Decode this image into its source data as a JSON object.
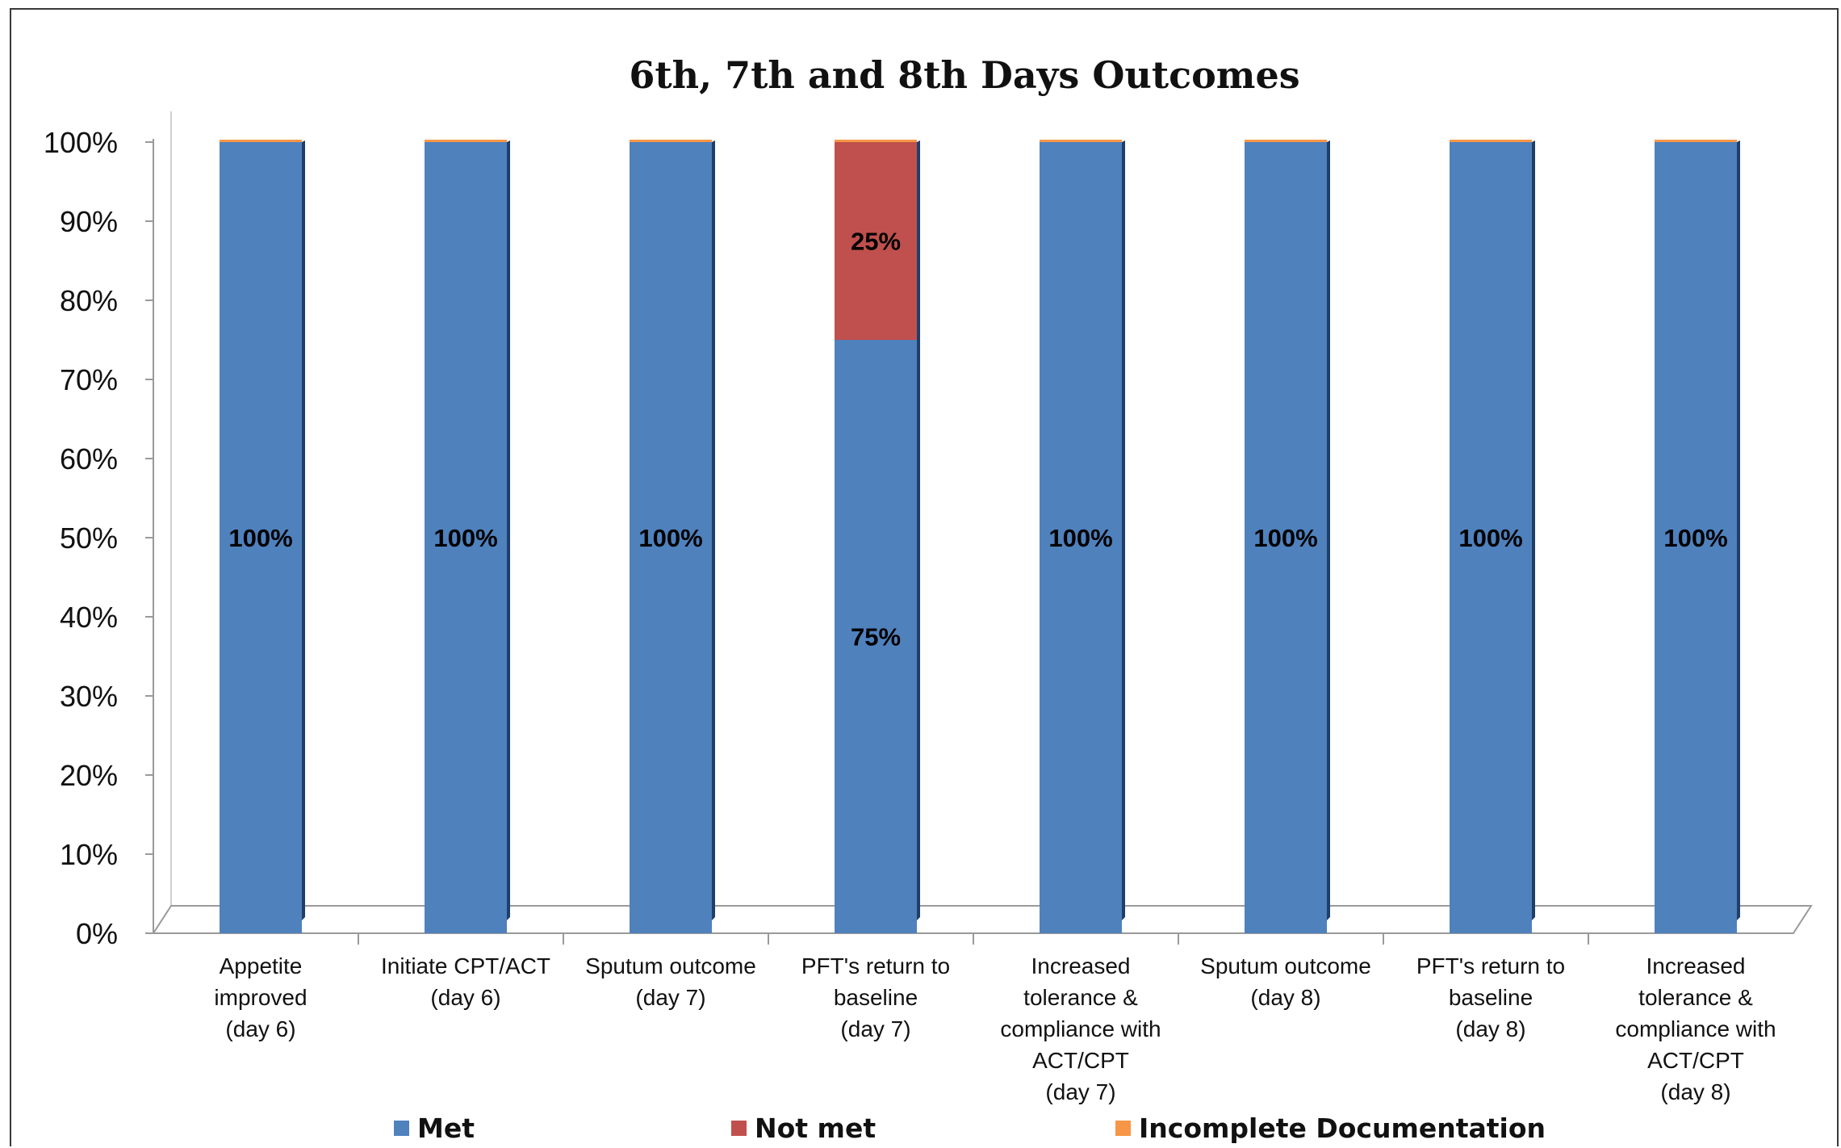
{
  "chart_data": {
    "type": "bar",
    "stacked": true,
    "percent": true,
    "title": "6th, 7th and 8th Days Outcomes",
    "categories": [
      [
        "Appetite",
        "improved",
        "(day 6)"
      ],
      [
        "Initiate CPT/ACT",
        "(day 6)"
      ],
      [
        "Sputum outcome",
        "(day 7)"
      ],
      [
        "PFT's return to",
        "baseline",
        "(day 7)"
      ],
      [
        "Increased",
        "tolerance &",
        "compliance with",
        "ACT/CPT",
        "(day 7)"
      ],
      [
        "Sputum outcome",
        "(day 8)"
      ],
      [
        "PFT's return to",
        "baseline",
        "(day 8)"
      ],
      [
        "Increased",
        "tolerance &",
        "compliance with",
        "ACT/CPT",
        "(day 8)"
      ]
    ],
    "series": [
      {
        "name": "Met",
        "color": "#4f81bd",
        "values": [
          100,
          100,
          100,
          75,
          100,
          100,
          100,
          100
        ],
        "labels": [
          "100%",
          "100%",
          "100%",
          "75%",
          "100%",
          "100%",
          "100%",
          "100%"
        ]
      },
      {
        "name": "Not met",
        "color": "#c0504d",
        "values": [
          0,
          0,
          0,
          25,
          0,
          0,
          0,
          0
        ],
        "labels": [
          "",
          "",
          "",
          "25%",
          "",
          "",
          "",
          ""
        ]
      },
      {
        "name": "Incomplete Documentation",
        "color": "#f79646",
        "values": [
          0,
          0,
          0,
          0,
          0,
          0,
          0,
          0
        ],
        "labels": [
          "",
          "",
          "",
          "",
          "",
          "",
          "",
          ""
        ]
      }
    ],
    "yticks": [
      "0%",
      "10%",
      "20%",
      "30%",
      "40%",
      "50%",
      "60%",
      "70%",
      "80%",
      "90%",
      "100%"
    ],
    "ylim": [
      0,
      100
    ],
    "grid": false,
    "legend_position": "bottom"
  }
}
